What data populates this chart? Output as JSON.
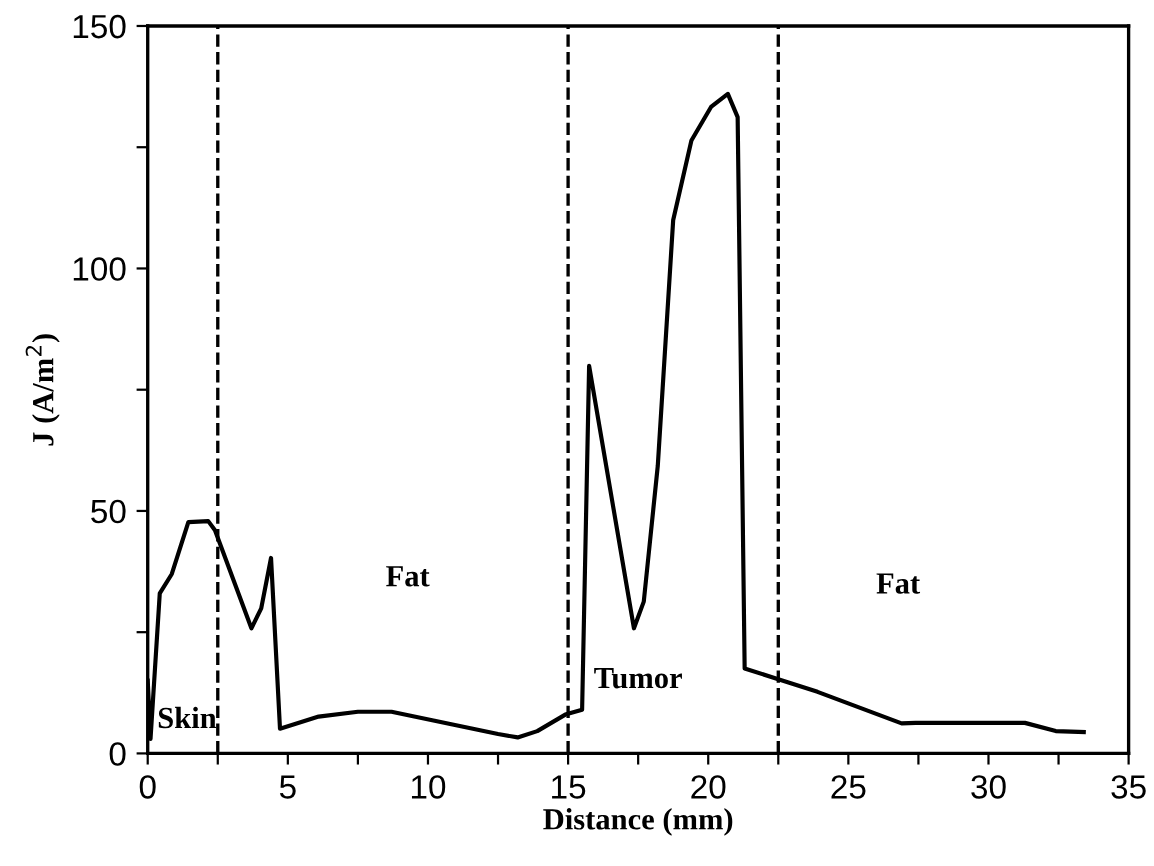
{
  "chart_data": {
    "type": "line",
    "xlabel": "Distance (mm)",
    "ylabel": "J (A/m$^{2}$)",
    "x": [
      0,
      0.1,
      0.43,
      0.86,
      1.45,
      2.16,
      2.4,
      3.7,
      4.05,
      4.4,
      4.72,
      6.1,
      7.5,
      8.7,
      12.5,
      13.2,
      13.9,
      14.9,
      15.5,
      15.75,
      17.35,
      17.7,
      18.2,
      18.75,
      19.4,
      20.1,
      20.7,
      21.05,
      21.3,
      22.5,
      23.9,
      26.9,
      27.4,
      31.3,
      32.4,
      33.4
    ],
    "series": [
      {
        "color": "#000000",
        "values": [
          15,
          3,
          33,
          37,
          47.7,
          47.9,
          46,
          25.8,
          29.9,
          40.3,
          5.1,
          7.6,
          8.6,
          8.6,
          4,
          3.3,
          4.6,
          8,
          9,
          79.9,
          25.8,
          31.3,
          59.3,
          110,
          126.4,
          133.3,
          136,
          131.2,
          17.5,
          15.3,
          12.7,
          6.2,
          6.3,
          6.3,
          4.6,
          4.4
        ]
      }
    ],
    "xlim": [
      0,
      35
    ],
    "ylim": [
      0,
      150
    ],
    "xticks": [
      0,
      {
        "value": 2.5,
        "label": null
      },
      5,
      {
        "value": 7.5,
        "label": null
      },
      10,
      {
        "value": 12.5,
        "label": null
      },
      15,
      {
        "value": 17.5,
        "label": null
      },
      20,
      {
        "value": 22.5,
        "label": null
      },
      25,
      {
        "value": 27.5,
        "label": null
      },
      30,
      {
        "value": 32.5,
        "label": null
      },
      35
    ],
    "yticks": [
      0,
      {
        "value": 25,
        "label": null
      },
      50,
      {
        "value": 75,
        "label": null
      },
      100,
      {
        "value": 125,
        "label": null
      },
      150
    ],
    "ref_lines": [
      {
        "axis": "x",
        "value": 2.5,
        "color": "#000000",
        "line_style": "dashed"
      },
      {
        "axis": "x",
        "value": 15,
        "color": "#000000",
        "line_style": "dashed"
      },
      {
        "axis": "x",
        "value": 22.5,
        "color": "#000000",
        "line_style": "dashed"
      }
    ],
    "annotations": [
      "Skin",
      "Fat",
      "Tumor",
      "Fat"
    ],
    "grid": false,
    "legend": false,
    "marker": "none",
    "line_style": "solid"
  }
}
